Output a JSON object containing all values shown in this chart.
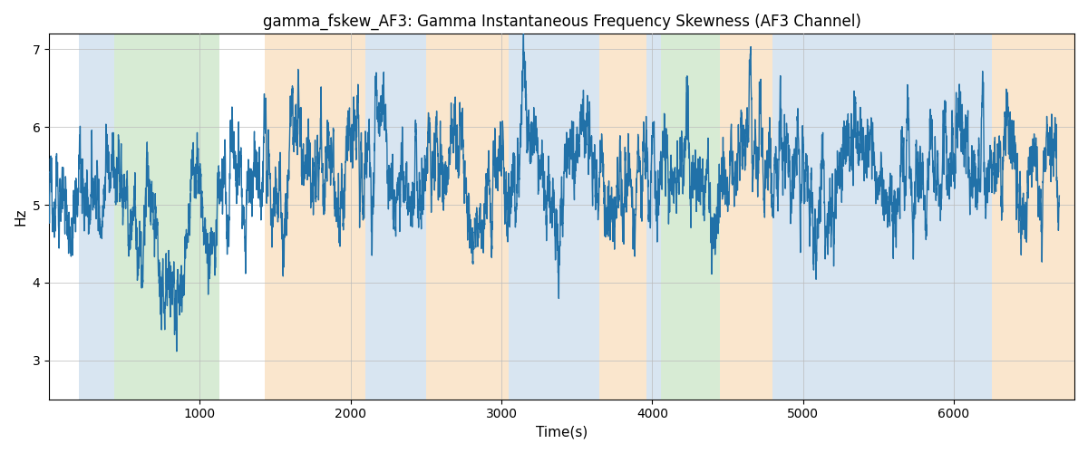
{
  "title": "gamma_fskew_AF3: Gamma Instantaneous Frequency Skewness (AF3 Channel)",
  "xlabel": "Time(s)",
  "ylabel": "Hz",
  "xlim": [
    0,
    6800
  ],
  "ylim": [
    2.5,
    7.2
  ],
  "yticks": [
    3,
    4,
    5,
    6,
    7
  ],
  "xticks": [
    1000,
    2000,
    3000,
    4000,
    5000,
    6000
  ],
  "line_color": "#2171a8",
  "line_width": 1.0,
  "background_color": "#ffffff",
  "grid_color": "#bbbbbb",
  "colored_bands": [
    {
      "xmin": 200,
      "xmax": 430,
      "color": "#aac7e0",
      "alpha": 0.45
    },
    {
      "xmin": 430,
      "xmax": 1130,
      "color": "#a8d4a0",
      "alpha": 0.45
    },
    {
      "xmin": 1430,
      "xmax": 2100,
      "color": "#f5c990",
      "alpha": 0.45
    },
    {
      "xmin": 2100,
      "xmax": 2500,
      "color": "#aac7e0",
      "alpha": 0.45
    },
    {
      "xmin": 2500,
      "xmax": 3050,
      "color": "#f5c990",
      "alpha": 0.45
    },
    {
      "xmin": 3050,
      "xmax": 3650,
      "color": "#aac7e0",
      "alpha": 0.45
    },
    {
      "xmin": 3650,
      "xmax": 3960,
      "color": "#f5c990",
      "alpha": 0.45
    },
    {
      "xmin": 3960,
      "xmax": 4060,
      "color": "#aac7e0",
      "alpha": 0.45
    },
    {
      "xmin": 4060,
      "xmax": 4450,
      "color": "#a8d4a0",
      "alpha": 0.45
    },
    {
      "xmin": 4450,
      "xmax": 4800,
      "color": "#f5c990",
      "alpha": 0.45
    },
    {
      "xmin": 4800,
      "xmax": 6130,
      "color": "#aac7e0",
      "alpha": 0.45
    },
    {
      "xmin": 6130,
      "xmax": 6250,
      "color": "#aac7e0",
      "alpha": 0.45
    },
    {
      "xmin": 6250,
      "xmax": 6800,
      "color": "#f5c990",
      "alpha": 0.45
    }
  ]
}
